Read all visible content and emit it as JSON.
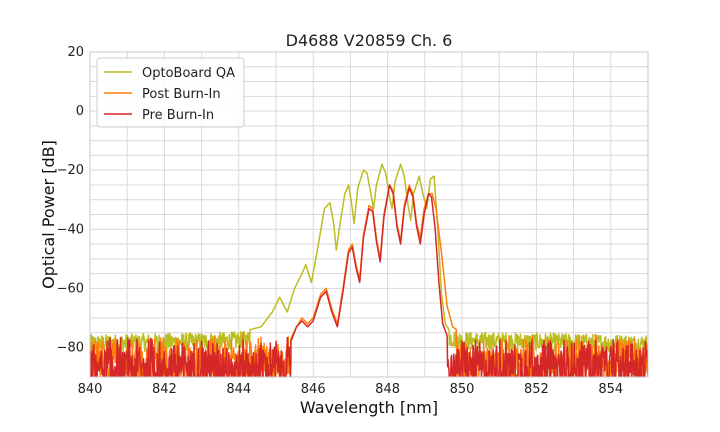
{
  "chart_data": {
    "type": "line",
    "title": "D4688 V20859 Ch. 6",
    "xlabel": "Wavelength [nm]",
    "ylabel": "Optical Power [dB]",
    "xlim": [
      840,
      855
    ],
    "ylim": [
      -90,
      20
    ],
    "xticks": [
      840,
      842,
      844,
      846,
      848,
      850,
      852,
      854
    ],
    "yticks": [
      20,
      0,
      -20,
      -40,
      -60,
      -80
    ],
    "grid": true,
    "legend_position": "top-left",
    "series": [
      {
        "name": "OptoBoard QA",
        "color": "#bcbd22",
        "noise_floor": [
          [
            840,
            -79
          ],
          [
            844,
            -78
          ],
          [
            844.6,
            -77
          ],
          [
            849.3,
            -76
          ],
          [
            850,
            -78
          ],
          [
            855,
            -79
          ]
        ],
        "points": [
          [
            844.3,
            -74
          ],
          [
            844.6,
            -73
          ],
          [
            844.9,
            -68
          ],
          [
            845.1,
            -63
          ],
          [
            845.3,
            -68
          ],
          [
            845.5,
            -60
          ],
          [
            845.7,
            -55
          ],
          [
            845.8,
            -52
          ],
          [
            845.95,
            -58
          ],
          [
            846.1,
            -48
          ],
          [
            846.3,
            -33
          ],
          [
            846.45,
            -31
          ],
          [
            846.55,
            -38
          ],
          [
            846.62,
            -47
          ],
          [
            846.7,
            -40
          ],
          [
            846.85,
            -28
          ],
          [
            846.95,
            -25
          ],
          [
            847.03,
            -31
          ],
          [
            847.1,
            -38
          ],
          [
            847.2,
            -26
          ],
          [
            847.35,
            -20
          ],
          [
            847.45,
            -21
          ],
          [
            847.55,
            -28
          ],
          [
            847.62,
            -33
          ],
          [
            847.7,
            -25
          ],
          [
            847.85,
            -18
          ],
          [
            847.95,
            -21
          ],
          [
            848.05,
            -29
          ],
          [
            848.12,
            -33
          ],
          [
            848.2,
            -24
          ],
          [
            848.35,
            -18
          ],
          [
            848.45,
            -22
          ],
          [
            848.55,
            -32
          ],
          [
            848.62,
            -37
          ],
          [
            848.7,
            -28
          ],
          [
            848.85,
            -22
          ],
          [
            848.95,
            -28
          ],
          [
            849.05,
            -33
          ],
          [
            849.15,
            -23
          ],
          [
            849.25,
            -22
          ],
          [
            849.35,
            -40
          ],
          [
            849.45,
            -62
          ],
          [
            849.55,
            -72
          ],
          [
            849.65,
            -74
          ]
        ]
      },
      {
        "name": "Post Burn-In",
        "color": "#ff7f0e",
        "noise_floor": [
          [
            840,
            -83
          ],
          [
            855,
            -83
          ]
        ],
        "points": [
          [
            845.4,
            -77
          ],
          [
            845.55,
            -73
          ],
          [
            845.7,
            -70
          ],
          [
            845.85,
            -72
          ],
          [
            846.0,
            -70
          ],
          [
            846.2,
            -62
          ],
          [
            846.35,
            -60
          ],
          [
            846.5,
            -67
          ],
          [
            846.65,
            -72
          ],
          [
            846.8,
            -60
          ],
          [
            846.95,
            -47
          ],
          [
            847.05,
            -45
          ],
          [
            847.15,
            -52
          ],
          [
            847.25,
            -57
          ],
          [
            847.35,
            -42
          ],
          [
            847.5,
            -32
          ],
          [
            847.6,
            -33
          ],
          [
            847.7,
            -43
          ],
          [
            847.8,
            -50
          ],
          [
            847.9,
            -35
          ],
          [
            848.05,
            -25
          ],
          [
            848.15,
            -27
          ],
          [
            848.25,
            -38
          ],
          [
            848.35,
            -44
          ],
          [
            848.45,
            -32
          ],
          [
            848.58,
            -25
          ],
          [
            848.68,
            -28
          ],
          [
            848.78,
            -38
          ],
          [
            848.88,
            -43
          ],
          [
            848.98,
            -33
          ],
          [
            849.1,
            -28
          ],
          [
            849.2,
            -28
          ],
          [
            849.3,
            -33
          ],
          [
            849.45,
            -48
          ],
          [
            849.6,
            -66
          ],
          [
            849.75,
            -73
          ],
          [
            849.85,
            -74
          ]
        ]
      },
      {
        "name": "Pre Burn-In",
        "color": "#d62728",
        "noise_floor": [
          [
            840,
            -84
          ],
          [
            855,
            -84
          ]
        ],
        "points": [
          [
            845.4,
            -78
          ],
          [
            845.55,
            -73
          ],
          [
            845.7,
            -71
          ],
          [
            845.85,
            -73
          ],
          [
            846.0,
            -71
          ],
          [
            846.2,
            -63
          ],
          [
            846.35,
            -61
          ],
          [
            846.5,
            -68
          ],
          [
            846.65,
            -73
          ],
          [
            846.8,
            -61
          ],
          [
            846.95,
            -48
          ],
          [
            847.05,
            -46
          ],
          [
            847.15,
            -53
          ],
          [
            847.25,
            -58
          ],
          [
            847.35,
            -43
          ],
          [
            847.5,
            -33
          ],
          [
            847.6,
            -34
          ],
          [
            847.7,
            -44
          ],
          [
            847.8,
            -51
          ],
          [
            847.9,
            -36
          ],
          [
            848.05,
            -25
          ],
          [
            848.15,
            -28
          ],
          [
            848.25,
            -39
          ],
          [
            848.35,
            -45
          ],
          [
            848.45,
            -33
          ],
          [
            848.58,
            -26
          ],
          [
            848.68,
            -29
          ],
          [
            848.78,
            -39
          ],
          [
            848.88,
            -45
          ],
          [
            848.98,
            -35
          ],
          [
            849.1,
            -28
          ],
          [
            849.18,
            -29
          ],
          [
            849.28,
            -40
          ],
          [
            849.38,
            -58
          ],
          [
            849.48,
            -72
          ],
          [
            849.6,
            -76
          ]
        ]
      }
    ]
  }
}
